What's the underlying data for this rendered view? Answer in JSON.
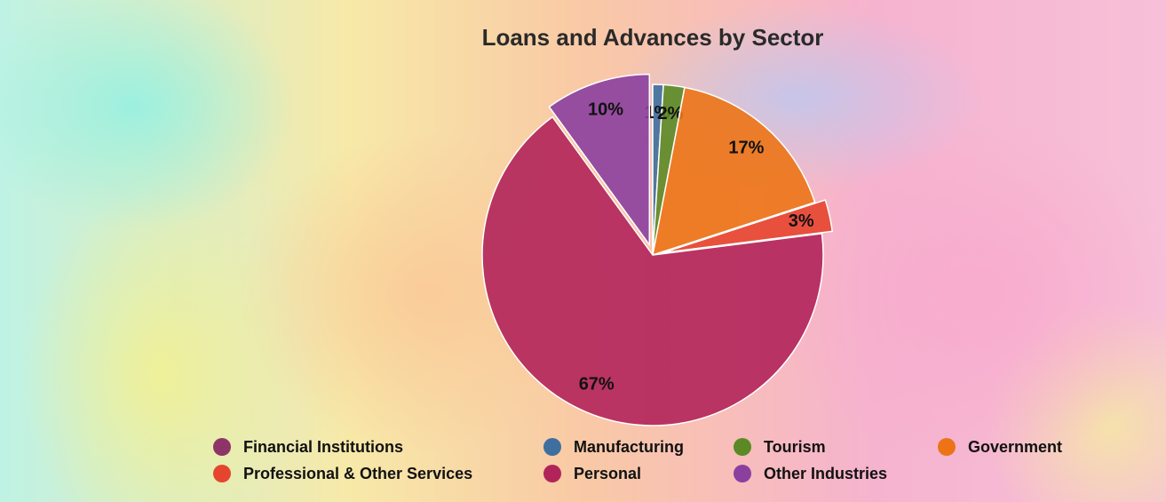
{
  "chart_data": {
    "type": "pie",
    "title": "Loans and Advances by Sector",
    "categories": [
      "Financial Institutions",
      "Manufacturing",
      "Tourism",
      "Government",
      "Professional & Other Services",
      "Personal",
      "Other Industries"
    ],
    "values": [
      0,
      1,
      2,
      17,
      3,
      67,
      10
    ],
    "value_labels": [
      null,
      "1%",
      "2%",
      "17%",
      "3%",
      "67%",
      "10%"
    ],
    "colors": [
      "#8e3468",
      "#3f6f9e",
      "#5b8a25",
      "#ec7417",
      "#e5452f",
      "#b1245a",
      "#8b3f9f"
    ],
    "exploded": [
      false,
      false,
      false,
      false,
      true,
      false,
      true
    ],
    "legend": "bottom"
  }
}
